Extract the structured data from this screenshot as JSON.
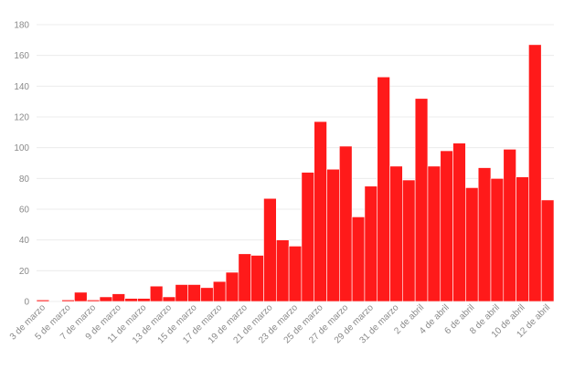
{
  "chart_data": {
    "type": "bar",
    "title": "",
    "xlabel": "",
    "ylabel": "",
    "ylim": [
      0,
      180
    ],
    "yticks": [
      0,
      20,
      40,
      60,
      80,
      100,
      120,
      140,
      160,
      180
    ],
    "grid": true,
    "bar_color": "#ff1a1a",
    "categories": [
      "3 de marzo",
      "4 de marzo",
      "5 de marzo",
      "6 de marzo",
      "7 de marzo",
      "8 de marzo",
      "9 de marzo",
      "10 de marzo",
      "11 de marzo",
      "12 de marzo",
      "13 de marzo",
      "14 de marzo",
      "15 de marzo",
      "16 de marzo",
      "17 de marzo",
      "18 de marzo",
      "19 de marzo",
      "20 de marzo",
      "21 de marzo",
      "22 de marzo",
      "23 de marzo",
      "24 de marzo",
      "25 de marzo",
      "26 de marzo",
      "27 de marzo",
      "28 de marzo",
      "29 de marzo",
      "30 de marzo",
      "31 de marzo",
      "1 de abril",
      "2 de abril",
      "3 de abril",
      "4 de abril",
      "5 de abril",
      "6 de abril",
      "7 de abril",
      "8 de abril",
      "9 de abril",
      "10 de abril",
      "11 de abril",
      "12 de abril"
    ],
    "values": [
      1,
      0,
      1,
      6,
      1,
      3,
      5,
      2,
      2,
      10,
      3,
      11,
      11,
      9,
      13,
      19,
      31,
      30,
      67,
      40,
      36,
      84,
      117,
      86,
      101,
      55,
      75,
      146,
      88,
      79,
      132,
      88,
      98,
      103,
      74,
      87,
      80,
      99,
      81,
      167,
      66
    ],
    "tick_labels": [
      "3 de marzo",
      "5 de marzo",
      "7 de marzo",
      "9 de marzo",
      "11 de marzo",
      "13 de marzo",
      "15 de marzo",
      "17 de marzo",
      "19 de marzo",
      "21 de marzo",
      "23 de marzo",
      "25 de marzo",
      "27 de marzo",
      "29 de marzo",
      "31 de marzo",
      "2 de abril",
      "4 de abril",
      "6 de abril",
      "8 de abril",
      "10 de abril",
      "12 de abril"
    ]
  }
}
